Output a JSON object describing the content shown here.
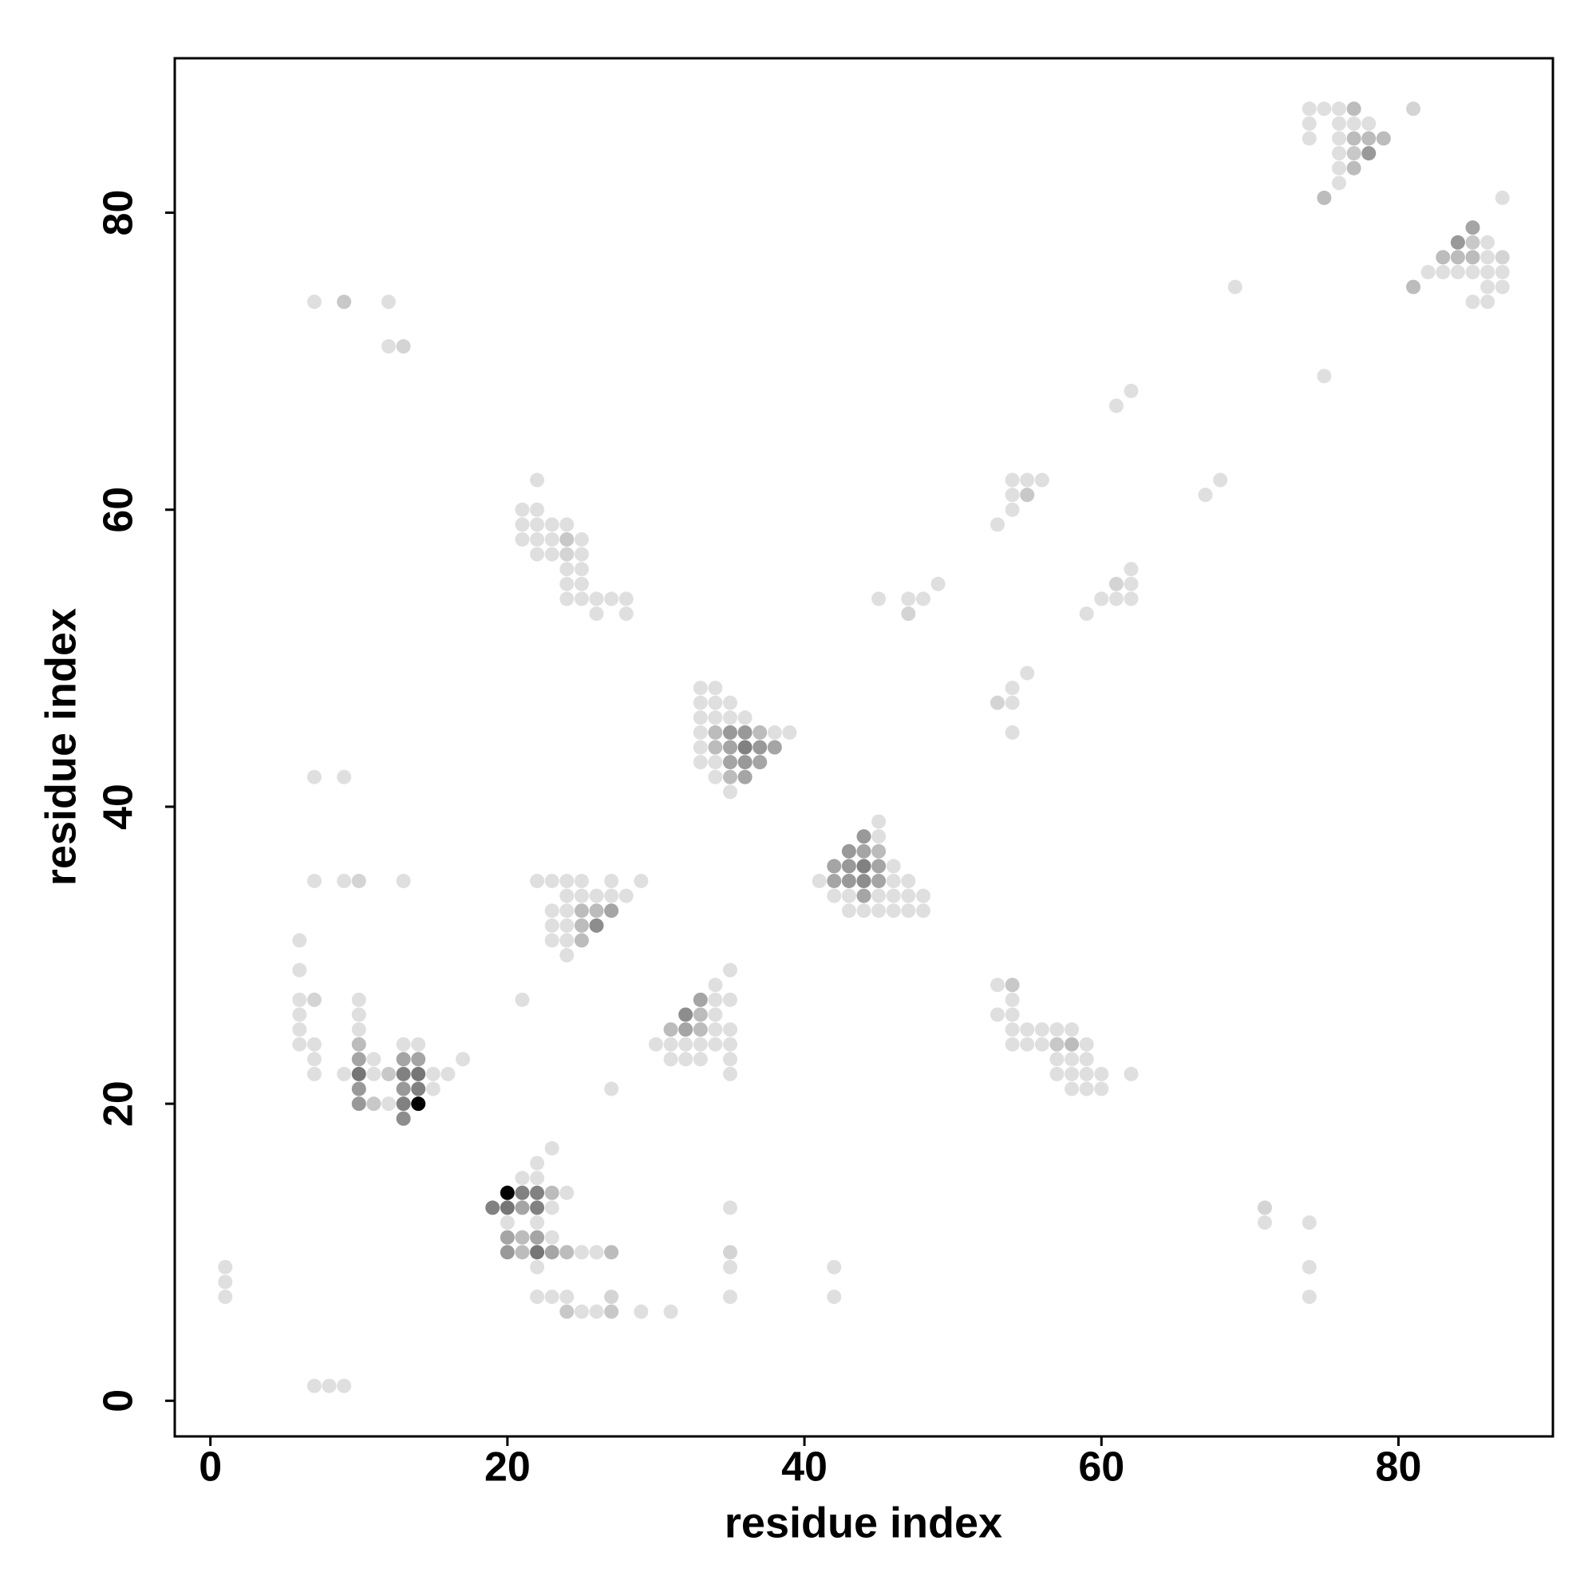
{
  "chart_data": {
    "type": "scatter",
    "x_label": "residue index",
    "y_label": "residue index",
    "xlim": [
      -2.4,
      90.4
    ],
    "ylim": [
      -2.4,
      90.4
    ],
    "xticks": [
      0,
      20,
      40,
      60,
      80
    ],
    "yticks": [
      0,
      20,
      40,
      60,
      80
    ],
    "x": [
      74,
      75,
      76,
      77,
      81,
      74,
      76,
      77,
      78,
      74,
      76,
      77,
      78,
      79,
      76,
      77,
      78,
      76,
      77,
      76,
      75,
      87,
      85,
      84,
      85,
      86,
      83,
      84,
      85,
      86,
      87,
      82,
      83,
      84,
      85,
      86,
      87,
      81,
      86,
      87,
      85,
      86,
      69,
      75,
      7,
      9,
      12,
      12,
      13,
      7,
      9,
      7,
      9,
      10,
      13,
      61,
      62,
      67,
      68,
      54,
      55,
      56,
      54,
      55,
      54,
      53,
      62,
      61,
      62,
      60,
      61,
      62,
      59,
      45,
      47,
      48,
      47,
      49,
      53,
      54,
      54,
      55,
      54,
      22,
      21,
      22,
      21,
      22,
      23,
      24,
      21,
      22,
      23,
      24,
      25,
      22,
      23,
      24,
      25,
      24,
      25,
      24,
      25,
      24,
      25,
      26,
      27,
      28,
      26,
      28,
      33,
      34,
      33,
      34,
      35,
      33,
      34,
      35,
      36,
      33,
      34,
      35,
      36,
      37,
      38,
      39,
      33,
      34,
      35,
      36,
      37,
      38,
      33,
      34,
      35,
      36,
      37,
      34,
      35,
      36,
      35,
      45,
      44,
      45,
      43,
      44,
      45,
      42,
      43,
      44,
      45,
      46,
      41,
      42,
      43,
      44,
      45,
      46,
      47,
      42,
      43,
      44,
      45,
      46,
      47,
      48,
      43,
      44,
      45,
      46,
      47,
      48,
      22,
      23,
      24,
      25,
      27,
      29,
      24,
      25,
      26,
      27,
      28,
      23,
      24,
      25,
      26,
      27,
      23,
      24,
      25,
      26,
      23,
      24,
      25,
      24,
      35,
      34,
      33,
      34,
      35,
      32,
      33,
      34,
      31,
      32,
      33,
      34,
      35,
      30,
      31,
      32,
      33,
      34,
      35,
      31,
      32,
      33,
      35,
      35,
      21,
      27,
      53,
      54,
      54,
      53,
      54,
      54,
      55,
      56,
      57,
      58,
      54,
      55,
      56,
      57,
      58,
      59,
      57,
      58,
      59,
      57,
      58,
      59,
      60,
      62,
      58,
      59,
      60,
      6,
      6,
      6,
      7,
      10,
      6,
      10,
      6,
      10,
      6,
      7,
      10,
      13,
      14,
      7,
      10,
      11,
      13,
      14,
      17,
      7,
      9,
      10,
      11,
      12,
      13,
      14,
      15,
      16,
      10,
      13,
      14,
      15,
      10,
      11,
      12,
      13,
      14,
      13,
      23,
      22,
      21,
      22,
      20,
      21,
      22,
      23,
      24,
      19,
      20,
      21,
      22,
      23,
      20,
      22,
      20,
      21,
      22,
      23,
      20,
      21,
      22,
      23,
      24,
      25,
      26,
      27,
      22,
      22,
      23,
      24,
      27,
      24,
      25,
      26,
      27,
      29,
      31,
      35,
      35,
      35,
      35,
      42,
      42,
      71,
      71,
      74,
      74,
      74,
      1,
      1,
      1,
      7,
      8,
      9
    ],
    "y": [
      87,
      87,
      87,
      87,
      87,
      86,
      86,
      86,
      86,
      85,
      85,
      85,
      85,
      85,
      84,
      84,
      84,
      83,
      83,
      82,
      81,
      81,
      79,
      78,
      78,
      78,
      77,
      77,
      77,
      77,
      77,
      76,
      76,
      76,
      76,
      76,
      76,
      75,
      75,
      75,
      74,
      74,
      75,
      69,
      74,
      74,
      74,
      71,
      71,
      42,
      42,
      35,
      35,
      35,
      35,
      67,
      68,
      61,
      62,
      62,
      62,
      62,
      61,
      61,
      60,
      59,
      56,
      55,
      55,
      54,
      54,
      54,
      53,
      54,
      54,
      54,
      53,
      55,
      47,
      47,
      48,
      49,
      45,
      62,
      60,
      60,
      59,
      59,
      59,
      59,
      58,
      58,
      58,
      58,
      58,
      57,
      57,
      57,
      57,
      56,
      56,
      55,
      55,
      54,
      54,
      54,
      54,
      54,
      53,
      53,
      48,
      48,
      47,
      47,
      47,
      46,
      46,
      46,
      46,
      45,
      45,
      45,
      45,
      45,
      45,
      45,
      44,
      44,
      44,
      44,
      44,
      44,
      43,
      43,
      43,
      43,
      43,
      42,
      42,
      42,
      41,
      39,
      38,
      38,
      37,
      37,
      37,
      36,
      36,
      36,
      36,
      36,
      35,
      35,
      35,
      35,
      35,
      35,
      35,
      34,
      34,
      34,
      34,
      34,
      34,
      34,
      33,
      33,
      33,
      33,
      33,
      33,
      35,
      35,
      35,
      35,
      35,
      35,
      34,
      34,
      34,
      34,
      34,
      33,
      33,
      33,
      33,
      33,
      32,
      32,
      32,
      32,
      31,
      31,
      31,
      30,
      29,
      28,
      27,
      27,
      27,
      26,
      26,
      26,
      25,
      25,
      25,
      25,
      25,
      24,
      24,
      24,
      24,
      24,
      24,
      23,
      23,
      23,
      23,
      22,
      27,
      21,
      28,
      28,
      27,
      26,
      26,
      25,
      25,
      25,
      25,
      25,
      24,
      24,
      24,
      24,
      24,
      24,
      23,
      23,
      23,
      22,
      22,
      22,
      22,
      22,
      21,
      21,
      21,
      31,
      29,
      27,
      27,
      27,
      26,
      26,
      25,
      25,
      24,
      24,
      24,
      24,
      24,
      23,
      23,
      23,
      23,
      23,
      23,
      22,
      22,
      22,
      22,
      22,
      22,
      22,
      22,
      22,
      21,
      21,
      21,
      21,
      20,
      20,
      20,
      20,
      20,
      19,
      17,
      16,
      15,
      15,
      14,
      14,
      14,
      14,
      14,
      13,
      13,
      13,
      13,
      13,
      12,
      12,
      11,
      11,
      11,
      11,
      10,
      10,
      10,
      10,
      10,
      10,
      10,
      10,
      9,
      7,
      7,
      7,
      7,
      6,
      6,
      6,
      6,
      6,
      6,
      13,
      10,
      9,
      7,
      9,
      7,
      13,
      12,
      12,
      9,
      7,
      9,
      8,
      7,
      1,
      1,
      1
    ],
    "values": [
      0.05,
      0.05,
      0.05,
      0.2,
      0.1,
      0.05,
      0.05,
      0.05,
      0.05,
      0.05,
      0.05,
      0.2,
      0.2,
      0.2,
      0.05,
      0.15,
      0.35,
      0.05,
      0.2,
      0.05,
      0.2,
      0.05,
      0.3,
      0.35,
      0.15,
      0.05,
      0.2,
      0.2,
      0.2,
      0.05,
      0.1,
      0.05,
      0.05,
      0.05,
      0.05,
      0.05,
      0.05,
      0.2,
      0.05,
      0.05,
      0.05,
      0.05,
      0.05,
      0.05,
      0.05,
      0.15,
      0.05,
      0.05,
      0.1,
      0.05,
      0.05,
      0.05,
      0.05,
      0.1,
      0.05,
      0.05,
      0.05,
      0.05,
      0.05,
      0.05,
      0.05,
      0.05,
      0.05,
      0.15,
      0.05,
      0.05,
      0.05,
      0.1,
      0.05,
      0.05,
      0.05,
      0.05,
      0.05,
      0.05,
      0.05,
      0.05,
      0.1,
      0.05,
      0.1,
      0.05,
      0.05,
      0.05,
      0.05,
      0.05,
      0.05,
      0.05,
      0.05,
      0.05,
      0.05,
      0.05,
      0.05,
      0.05,
      0.05,
      0.15,
      0.05,
      0.05,
      0.05,
      0.1,
      0.05,
      0.05,
      0.05,
      0.05,
      0.05,
      0.05,
      0.05,
      0.05,
      0.05,
      0.05,
      0.05,
      0.05,
      0.05,
      0.05,
      0.05,
      0.05,
      0.05,
      0.05,
      0.05,
      0.05,
      0.05,
      0.05,
      0.2,
      0.35,
      0.35,
      0.2,
      0.05,
      0.05,
      0.05,
      0.2,
      0.3,
      0.45,
      0.35,
      0.3,
      0.05,
      0.05,
      0.3,
      0.35,
      0.3,
      0.05,
      0.2,
      0.3,
      0.05,
      0.05,
      0.35,
      0.05,
      0.35,
      0.3,
      0.2,
      0.3,
      0.35,
      0.45,
      0.3,
      0.05,
      0.05,
      0.3,
      0.35,
      0.4,
      0.3,
      0.05,
      0.05,
      0.05,
      0.05,
      0.3,
      0.05,
      0.05,
      0.05,
      0.05,
      0.05,
      0.05,
      0.05,
      0.05,
      0.05,
      0.05,
      0.05,
      0.05,
      0.05,
      0.05,
      0.05,
      0.05,
      0.05,
      0.05,
      0.05,
      0.05,
      0.05,
      0.05,
      0.05,
      0.2,
      0.2,
      0.3,
      0.05,
      0.05,
      0.2,
      0.4,
      0.05,
      0.05,
      0.2,
      0.05,
      0.05,
      0.05,
      0.3,
      0.05,
      0.05,
      0.4,
      0.2,
      0.05,
      0.2,
      0.3,
      0.2,
      0.05,
      0.05,
      0.05,
      0.05,
      0.05,
      0.05,
      0.05,
      0.05,
      0.05,
      0.05,
      0.05,
      0.05,
      0.05,
      0.05,
      0.05,
      0.05,
      0.15,
      0.05,
      0.05,
      0.05,
      0.05,
      0.05,
      0.05,
      0.05,
      0.05,
      0.05,
      0.05,
      0.05,
      0.15,
      0.2,
      0.05,
      0.05,
      0.05,
      0.05,
      0.05,
      0.05,
      0.05,
      0.05,
      0.05,
      0.05,
      0.05,
      0.05,
      0.05,
      0.05,
      0.05,
      0.1,
      0.05,
      0.05,
      0.05,
      0.05,
      0.05,
      0.05,
      0.05,
      0.2,
      0.05,
      0.05,
      0.05,
      0.3,
      0.05,
      0.3,
      0.3,
      0.05,
      0.05,
      0.05,
      0.5,
      0.05,
      0.15,
      0.45,
      0.5,
      0.05,
      0.05,
      0.35,
      0.35,
      0.45,
      0.05,
      0.35,
      0.15,
      0.05,
      0.45,
      1,
      0.4,
      0.05,
      0.05,
      0.05,
      0.05,
      1,
      0.45,
      0.45,
      0.2,
      0.05,
      0.45,
      0.5,
      0.3,
      0.45,
      0.05,
      0.05,
      0.05,
      0.3,
      0.2,
      0.3,
      0.05,
      0.35,
      0.2,
      0.5,
      0.3,
      0.2,
      0.05,
      0.05,
      0.2,
      0.05,
      0.05,
      0.05,
      0.05,
      0.1,
      0.15,
      0.05,
      0.05,
      0.15,
      0.05,
      0.05,
      0.05,
      0.1,
      0.05,
      0.05,
      0.05,
      0.05,
      0.1,
      0.05,
      0.05,
      0.05,
      0.05,
      0.05,
      0.05,
      0.05,
      0.05,
      0.05,
      0.05
    ]
  }
}
